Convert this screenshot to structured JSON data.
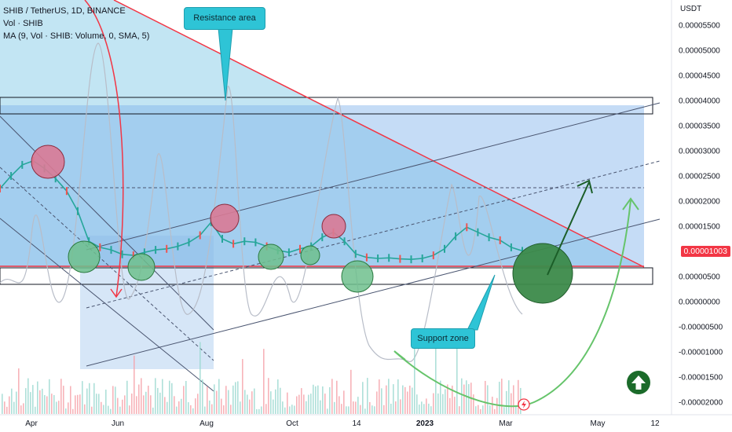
{
  "legend": {
    "symbol_line": "SHIB / TetherUS, 1D, BINANCE",
    "vol_line": "Vol · SHIB",
    "ma_line": "MA (9, Vol · SHIB: Volume, 0, SMA, 5)"
  },
  "callouts": {
    "resistance": "Resistance area",
    "support": "Support zone"
  },
  "price_tag": "0.00001003",
  "colors": {
    "bg_zone": "#8ac4ea",
    "resistance_line": "#f23645",
    "support_arrow": "#66c46b",
    "up_arrow": "#1b6b2a",
    "candles": "#26a69a",
    "volume": "#f5a0a8"
  },
  "chart_data": {
    "type": "line",
    "title": "SHIB / TetherUS, 1D, BINANCE",
    "y_axis_unit": "USDT",
    "yticks": [
      "0.00005500",
      "0.00005000",
      "0.00004500",
      "0.00004000",
      "0.00003500",
      "0.00003000",
      "0.00002500",
      "0.00002000",
      "0.00001500",
      "0.00001003",
      "0.00000500",
      "0.00000000",
      "-0.00000500",
      "-0.00001000",
      "-0.00001500",
      "-0.00002000"
    ],
    "xticks": [
      "Apr",
      "Jun",
      "Aug",
      "Oct",
      "14",
      "2023",
      "Mar",
      "May",
      "12"
    ],
    "ylim": [
      -2.05e-05,
      5.75e-05
    ],
    "series": [
      {
        "values": [
          2.25e-05,
          2.5e-05,
          2.72e-05,
          2.8e-05,
          2.65e-05,
          2.45e-05,
          2.2e-05,
          1.8e-05,
          1.2e-05,
          1.08e-05,
          1.03e-05,
          9.4e-06,
          9.2e-06,
          9.8e-06,
          1.03e-05,
          1.05e-05,
          1.1e-05,
          1.18e-05,
          1.32e-05,
          1.58e-05,
          1.25e-05,
          1.15e-05,
          1.2e-05,
          1.18e-05,
          1.1e-05,
          1.02e-05,
          9.8e-06,
          1.05e-05,
          1.1e-05,
          1.28e-05,
          1.38e-05,
          1.2e-05,
          9.5e-06,
          8.8e-06,
          8.6e-06,
          8.7e-06,
          8.5e-06,
          8.4e-06,
          8.6e-06,
          9.2e-06,
          1.05e-05,
          1.3e-05,
          1.48e-05,
          1.38e-05,
          1.28e-05,
          1.22e-05,
          1.08e-05,
          1.01e-05
        ]
      }
    ],
    "price_label": "0.00001003",
    "annotations": [
      "Resistance area",
      "Support zone"
    ]
  }
}
